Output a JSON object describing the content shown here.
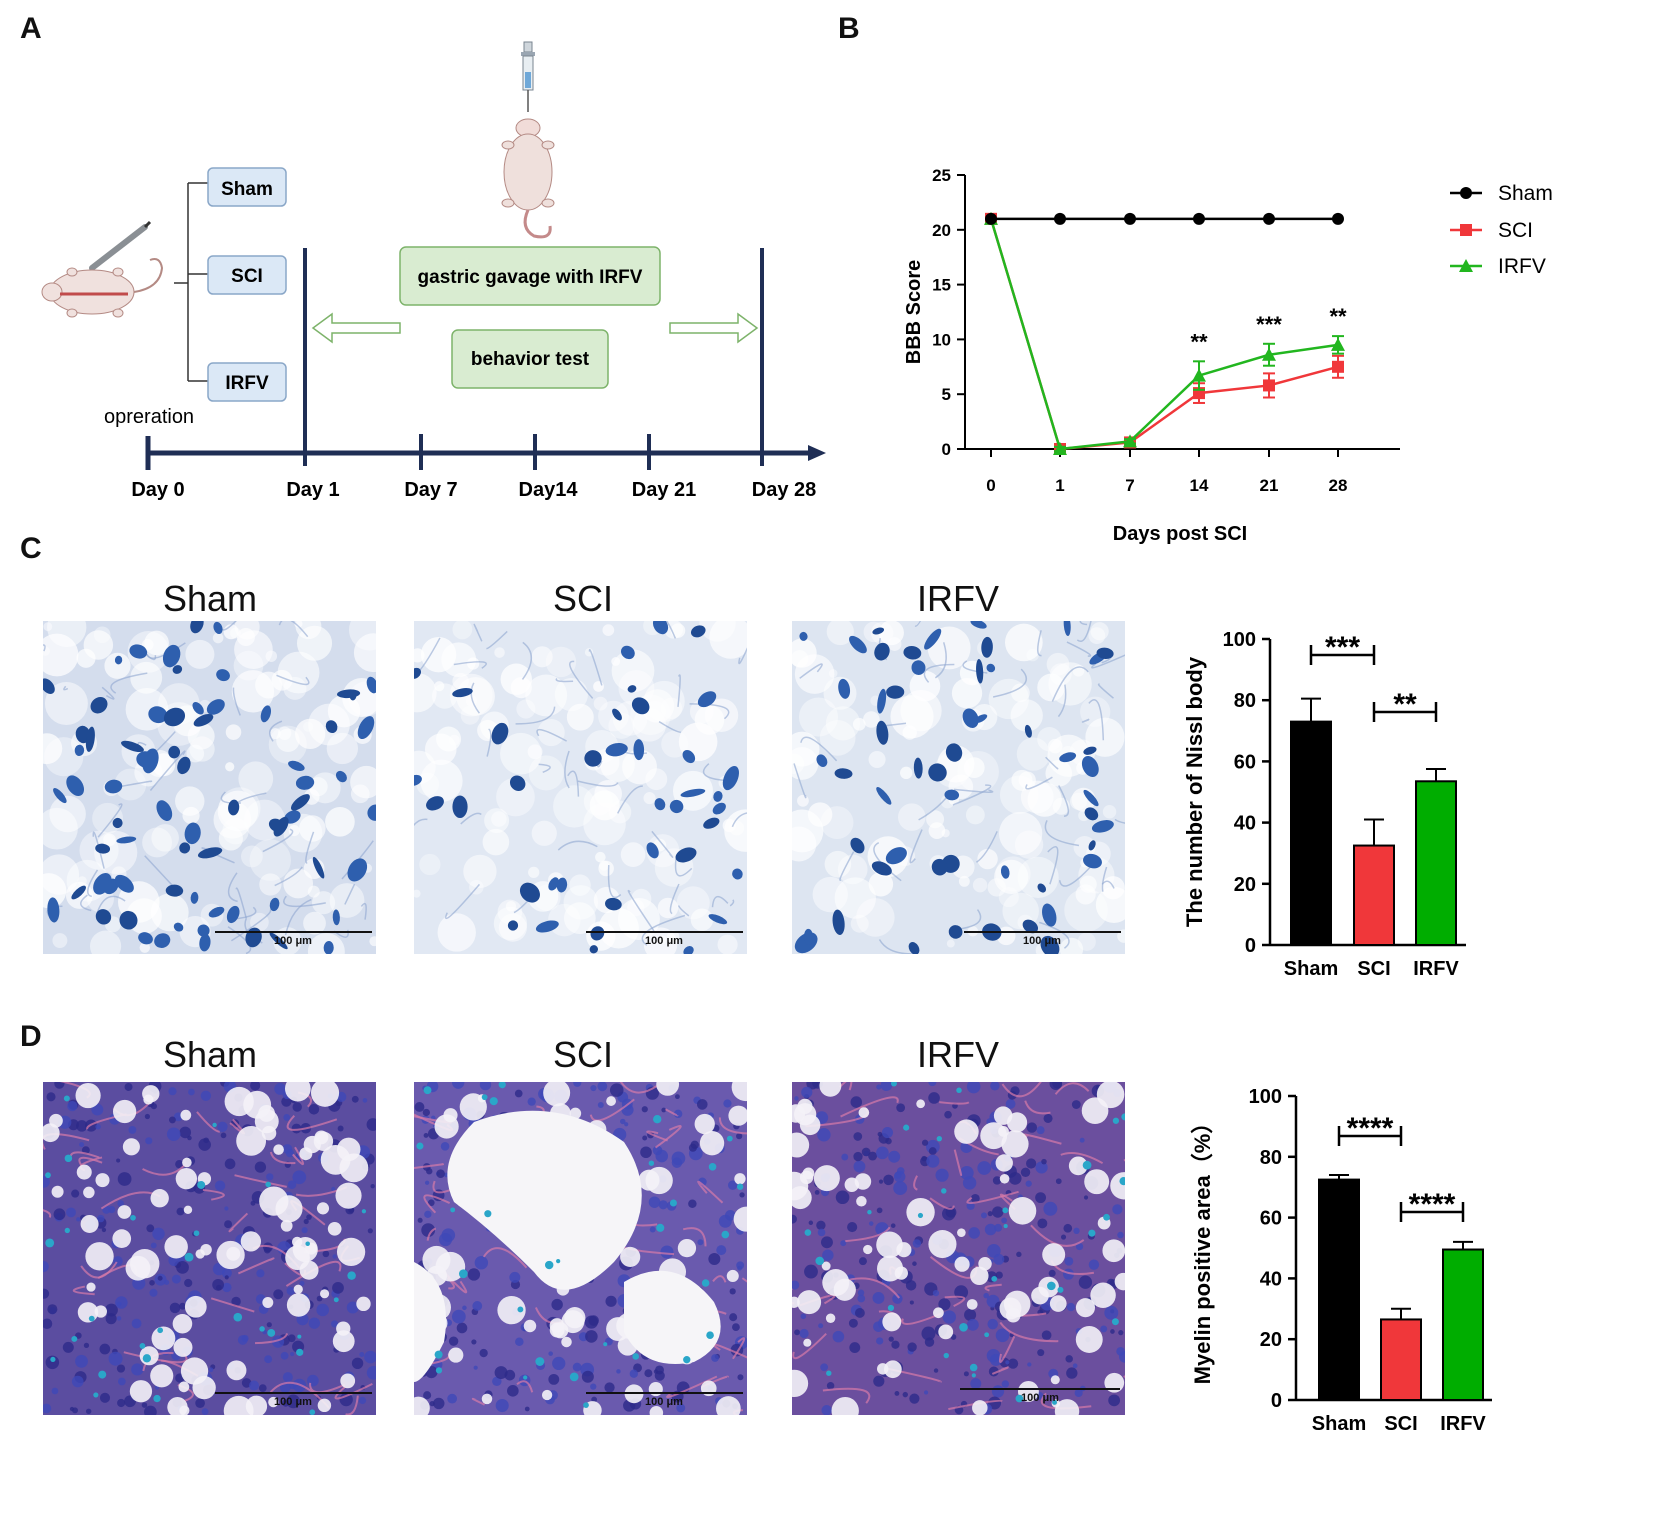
{
  "panel_letters": {
    "a": "A",
    "b": "B",
    "c": "C",
    "d": "D"
  },
  "panelA": {
    "groups": [
      "Sham",
      "SCI",
      "IRFV"
    ],
    "treatment_label": "gastric gavage with IRFV",
    "test_label": "behavior test",
    "operation_label": "oprerat​ion",
    "days": [
      "Day 0",
      "Day 1",
      "Day 7",
      "Day14",
      "Day 21",
      "Day 28"
    ]
  },
  "chart_data": [
    {
      "type": "line",
      "panel": "B",
      "x": [
        "0",
        "1",
        "7",
        "14",
        "21",
        "28"
      ],
      "xlabel": "Days post SCI",
      "ylabel": "BBB Score",
      "ylim": [
        0,
        25
      ],
      "yticks": [
        "0",
        "5",
        "10",
        "15",
        "20",
        "25"
      ],
      "legend_position": "right",
      "series": [
        {
          "name": "Sham",
          "values": [
            21,
            21,
            21,
            21,
            21,
            21
          ],
          "color": "#000000",
          "marker": "circle"
        },
        {
          "name": "SCI",
          "values": [
            21,
            0,
            0.6,
            5.1,
            5.8,
            7.5
          ],
          "errors": [
            0,
            0.2,
            0.2,
            0.9,
            1.1,
            1.0
          ],
          "color": "#f0373a",
          "marker": "square"
        },
        {
          "name": "IRFV",
          "values": [
            21,
            0,
            0.7,
            6.7,
            8.6,
            9.5
          ],
          "errors": [
            0,
            0.2,
            0.2,
            1.3,
            1.0,
            0.8
          ],
          "color": "#22b61f",
          "marker": "triangle"
        }
      ],
      "annotations": [
        {
          "x": "14",
          "text": "**"
        },
        {
          "x": "21",
          "text": "***"
        },
        {
          "x": "28",
          "text": "**"
        }
      ]
    },
    {
      "type": "bar",
      "panel": "C",
      "categories": [
        "Sham",
        "SCI",
        "IRFV"
      ],
      "values": [
        73,
        32.5,
        53.5
      ],
      "errors": [
        7.5,
        8.5,
        4
      ],
      "colors": [
        "#000000",
        "#f0373a",
        "#00ad00"
      ],
      "ylabel": "The number of Nissl body",
      "ylim": [
        0,
        100
      ],
      "yticks": [
        "0",
        "20",
        "40",
        "60",
        "80",
        "100"
      ],
      "significance": [
        {
          "from": 0,
          "to": 1,
          "text": "***"
        },
        {
          "from": 1,
          "to": 2,
          "text": "**"
        }
      ]
    },
    {
      "type": "bar",
      "panel": "D",
      "categories": [
        "Sham",
        "SCI",
        "IRFV"
      ],
      "values": [
        72.5,
        26.5,
        49.5
      ],
      "errors": [
        1.5,
        3.5,
        2.5
      ],
      "colors": [
        "#000000",
        "#f0373a",
        "#00ad00"
      ],
      "ylabel": "Myelin positive area（%）",
      "ylim": [
        0,
        100
      ],
      "yticks": [
        "0",
        "20",
        "40",
        "60",
        "80",
        "100"
      ],
      "significance": [
        {
          "from": 0,
          "to": 1,
          "text": "****"
        },
        {
          "from": 1,
          "to": 2,
          "text": "****"
        }
      ]
    }
  ],
  "panelC": {
    "titles": [
      "Sham",
      "SCI",
      "IRFV"
    ],
    "scalebar": "100 μm"
  },
  "panelD": {
    "titles": [
      "Sham",
      "SCI",
      "IRFV"
    ],
    "scalebar": "100 μm"
  },
  "colors": {
    "box_fill": "#dbe8f6",
    "box_stroke": "#8aa7c8",
    "green_box": "#d9ecd1",
    "green_stroke": "#7db36a",
    "timeline": "#1f2e55"
  }
}
